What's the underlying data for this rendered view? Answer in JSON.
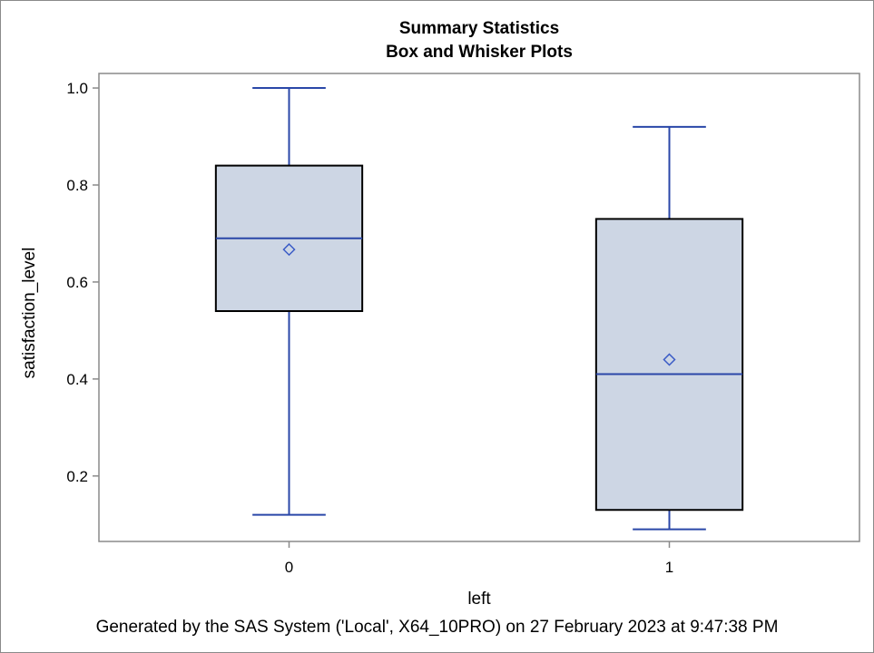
{
  "chart_data": {
    "type": "box",
    "title": "Summary Statistics",
    "subtitle": "Box and Whisker Plots",
    "xlabel": "left",
    "ylabel": "satisfaction_level",
    "categories": [
      "0",
      "1"
    ],
    "boxes": [
      {
        "category": "0",
        "min": 0.12,
        "q1": 0.54,
        "median": 0.69,
        "mean": 0.667,
        "q3": 0.84,
        "max": 1.0
      },
      {
        "category": "1",
        "min": 0.09,
        "q1": 0.13,
        "median": 0.41,
        "mean": 0.44,
        "q3": 0.73,
        "max": 0.92
      }
    ],
    "y_ticks": [
      "0.2",
      "0.4",
      "0.6",
      "0.8",
      "1.0"
    ],
    "ylim": [
      0.065,
      1.03
    ],
    "grid": false,
    "colors": {
      "box_fill": "#cdd6e4",
      "box_edge": "#000000",
      "whisker": "#2a47a8",
      "median": "#2a47a8",
      "mean_marker": "#3a5bc6",
      "axis": "#8a8a8a"
    }
  },
  "footnote": "Generated by the SAS System ('Local', X64_10PRO) on 27 February 2023 at 9:47:38 PM"
}
